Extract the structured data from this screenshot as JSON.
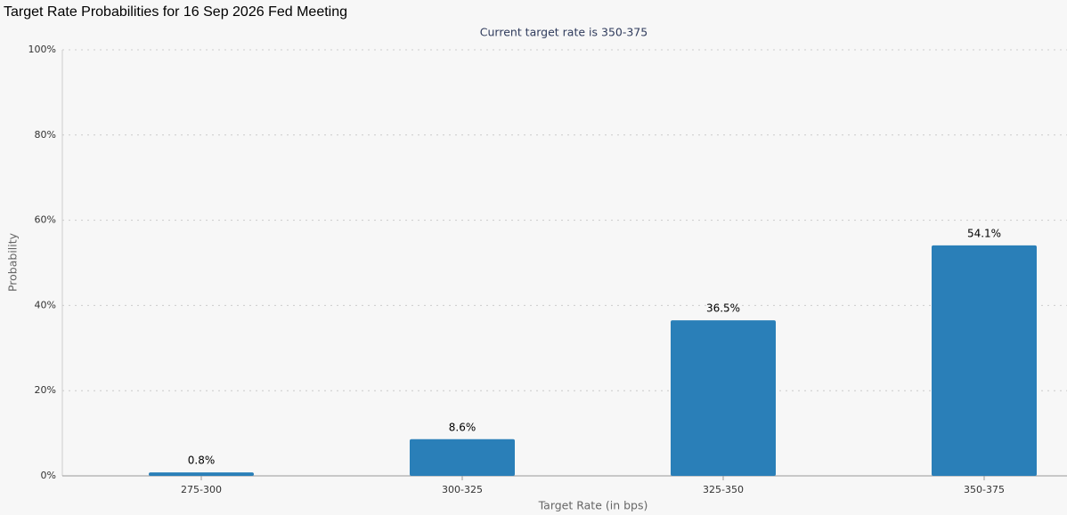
{
  "chart_data": {
    "type": "bar",
    "title": "Target Rate Probabilities for 16 Sep 2026 Fed Meeting",
    "subtitle": "Current target rate is 350-375",
    "x_label": "Target Rate (in bps)",
    "y_label": "Probability",
    "categories": [
      "275-300",
      "300-325",
      "325-350",
      "350-375"
    ],
    "values": [
      0.8,
      8.6,
      36.5,
      54.1
    ],
    "value_labels": [
      "0.8%",
      "8.6%",
      "36.5%",
      "54.1%"
    ],
    "color": "#2a7fb8",
    "ylim": [
      0,
      100
    ],
    "yticks": [
      {
        "value": 0,
        "label": "0%"
      },
      {
        "value": 20,
        "label": "20%"
      },
      {
        "value": 40,
        "label": "40%"
      },
      {
        "value": 60,
        "label": "60%"
      },
      {
        "value": 80,
        "label": "80%"
      },
      {
        "value": 100,
        "label": "100%"
      }
    ],
    "grid": true
  }
}
